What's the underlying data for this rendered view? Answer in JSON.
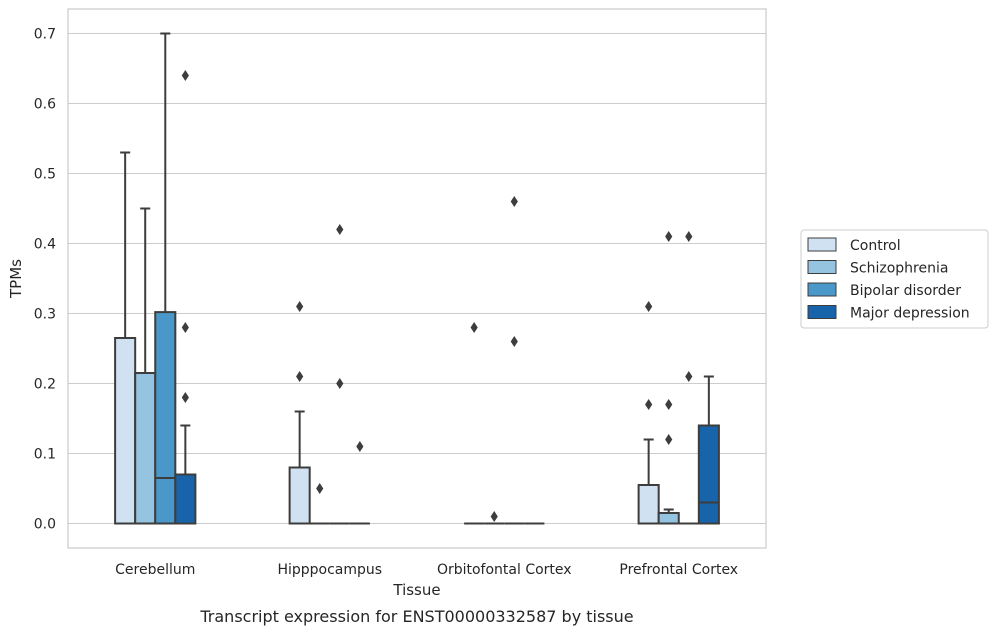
{
  "chart_data": {
    "type": "box",
    "title": "",
    "caption": "Transcript expression for ENST00000332587 by tissue",
    "xlabel": "Tissue",
    "ylabel": "TPMs",
    "ylim": [
      -0.035,
      0.735
    ],
    "yticks": [
      "0.0",
      "0.1",
      "0.2",
      "0.3",
      "0.4",
      "0.5",
      "0.6",
      "0.7"
    ],
    "grid": true,
    "legend_position": "right",
    "categories": [
      "Cerebellum",
      "Hipppocampus",
      "Orbitofontal Cortex",
      "Prefrontal Cortex"
    ],
    "series": [
      {
        "name": "Control",
        "color": "#d0e1f2",
        "boxes": [
          {
            "min": 0.0,
            "q1": 0.0,
            "median": 0.0,
            "q3": 0.265,
            "max": 0.53,
            "outliers": []
          },
          {
            "min": 0.0,
            "q1": 0.0,
            "median": 0.0,
            "q3": 0.08,
            "max": 0.16,
            "outliers": [
              0.21,
              0.31
            ]
          },
          {
            "min": 0.0,
            "q1": 0.0,
            "median": 0.0,
            "q3": 0.0,
            "max": 0.0,
            "outliers": [
              0.28
            ]
          },
          {
            "min": 0.0,
            "q1": 0.0,
            "median": 0.0,
            "q3": 0.055,
            "max": 0.12,
            "outliers": [
              0.17,
              0.31
            ]
          }
        ]
      },
      {
        "name": "Schizophrenia",
        "color": "#94c4df",
        "boxes": [
          {
            "min": 0.0,
            "q1": 0.0,
            "median": 0.0,
            "q3": 0.215,
            "max": 0.45,
            "outliers": []
          },
          {
            "min": 0.0,
            "q1": 0.0,
            "median": 0.0,
            "q3": 0.0,
            "max": 0.0,
            "outliers": [
              0.05
            ]
          },
          {
            "min": 0.0,
            "q1": 0.0,
            "median": 0.0,
            "q3": 0.0,
            "max": 0.0,
            "outliers": [
              0.01
            ]
          },
          {
            "min": 0.0,
            "q1": 0.0,
            "median": 0.0,
            "q3": 0.015,
            "max": 0.02,
            "outliers": [
              0.12,
              0.17,
              0.41
            ]
          }
        ]
      },
      {
        "name": "Bipolar disorder",
        "color": "#4a98c9",
        "boxes": [
          {
            "min": 0.0,
            "q1": 0.0,
            "median": 0.065,
            "q3": 0.302,
            "max": 0.7,
            "outliers": []
          },
          {
            "min": 0.0,
            "q1": 0.0,
            "median": 0.0,
            "q3": 0.0,
            "max": 0.0,
            "outliers": [
              0.2,
              0.42
            ]
          },
          {
            "min": 0.0,
            "q1": 0.0,
            "median": 0.0,
            "q3": 0.0,
            "max": 0.0,
            "outliers": [
              0.26,
              0.46
            ]
          },
          {
            "min": 0.0,
            "q1": 0.0,
            "median": 0.0,
            "q3": 0.0,
            "max": 0.0,
            "outliers": [
              0.21,
              0.41
            ]
          }
        ]
      },
      {
        "name": "Major depression",
        "color": "#1764ab",
        "boxes": [
          {
            "min": 0.0,
            "q1": 0.0,
            "median": 0.0,
            "q3": 0.07,
            "max": 0.14,
            "outliers": [
              0.18,
              0.28,
              0.64
            ]
          },
          {
            "min": 0.0,
            "q1": 0.0,
            "median": 0.0,
            "q3": 0.0,
            "max": 0.0,
            "outliers": [
              0.11
            ]
          },
          {
            "min": 0.0,
            "q1": 0.0,
            "median": 0.0,
            "q3": 0.0,
            "max": 0.0,
            "outliers": []
          },
          {
            "min": 0.0,
            "q1": 0.0,
            "median": 0.03,
            "q3": 0.14,
            "max": 0.21,
            "outliers": []
          }
        ]
      }
    ]
  }
}
